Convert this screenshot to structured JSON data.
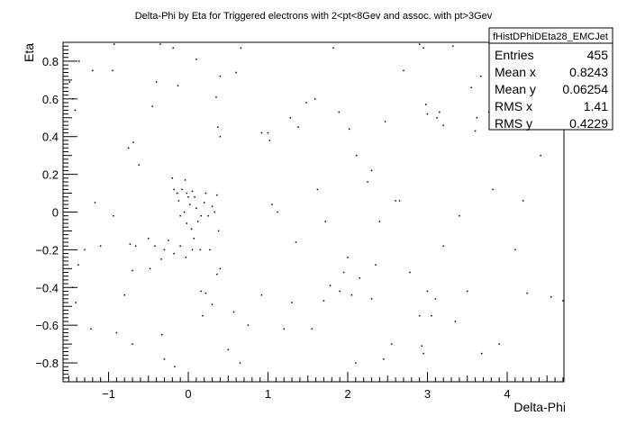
{
  "chart_data": {
    "type": "scatter",
    "title": "Delta-Phi by Eta for Triggered electrons with 2<pt<8Gev and assoc. with pt>3Gev",
    "xlabel": "Delta-Phi",
    "ylabel": "Eta",
    "xlim": [
      -1.571,
      4.712
    ],
    "ylim": [
      -0.9,
      0.9
    ],
    "x_ticks": [
      -1,
      0,
      1,
      2,
      3,
      4
    ],
    "x_tick_labels": [
      "−1",
      "0",
      "1",
      "2",
      "3",
      "4"
    ],
    "y_ticks": [
      -0.8,
      -0.6,
      -0.4,
      -0.2,
      0,
      0.2,
      0.4,
      0.6,
      0.8
    ],
    "y_tick_labels": [
      "−0.8",
      "−0.6",
      "−0.4",
      "−0.2",
      "0",
      "0.2",
      "0.4",
      "0.6",
      "0.8"
    ],
    "grid": false,
    "marker_color": "#000000",
    "points": [
      [
        -1.49,
        0.69
      ],
      [
        -1.45,
        0.6
      ],
      [
        -1.42,
        0.54
      ],
      [
        -1.37,
        0.8
      ],
      [
        -1.2,
        0.75
      ],
      [
        -0.93,
        0.89
      ],
      [
        -0.95,
        0.75
      ],
      [
        -0.75,
        0.34
      ],
      [
        -0.69,
        0.37
      ],
      [
        -0.62,
        0.25
      ],
      [
        -0.45,
        0.56
      ],
      [
        -0.4,
        0.69
      ],
      [
        -0.35,
        0.89
      ],
      [
        -0.19,
        0.87
      ],
      [
        -0.13,
        0.67
      ],
      [
        0.1,
        0.81
      ],
      [
        0.35,
        0.61
      ],
      [
        0.4,
        0.72
      ],
      [
        0.6,
        0.74
      ],
      [
        0.66,
        0.87
      ],
      [
        0.37,
        0.45
      ],
      [
        0.4,
        0.4
      ],
      [
        0.92,
        0.42
      ],
      [
        1.0,
        0.42
      ],
      [
        1.02,
        0.38
      ],
      [
        1.28,
        0.5
      ],
      [
        1.38,
        0.45
      ],
      [
        1.48,
        0.58
      ],
      [
        1.59,
        0.6
      ],
      [
        1.82,
        0.87
      ],
      [
        1.89,
        0.53
      ],
      [
        2.02,
        0.44
      ],
      [
        2.11,
        0.3
      ],
      [
        2.25,
        0.16
      ],
      [
        2.3,
        0.22
      ],
      [
        2.47,
        0.48
      ],
      [
        2.6,
        0.06
      ],
      [
        2.65,
        0.06
      ],
      [
        2.7,
        0.75
      ],
      [
        2.98,
        0.57
      ],
      [
        3.0,
        0.52
      ],
      [
        3.12,
        0.5
      ],
      [
        3.15,
        0.53
      ],
      [
        3.2,
        0.46
      ],
      [
        2.95,
        0.87
      ],
      [
        2.9,
        0.89
      ],
      [
        3.32,
        0.88
      ],
      [
        3.55,
        0.66
      ],
      [
        3.67,
        0.72
      ],
      [
        3.6,
        0.43
      ],
      [
        3.62,
        0.5
      ],
      [
        3.77,
        0.53
      ],
      [
        3.95,
        0.55
      ],
      [
        -0.2,
        0.18
      ],
      [
        -0.18,
        0.12
      ],
      [
        -0.14,
        0.1
      ],
      [
        -0.12,
        0.06
      ],
      [
        -0.08,
        0.12
      ],
      [
        -0.04,
        0.17
      ],
      [
        -0.02,
        0.1
      ],
      [
        0.0,
        0.08
      ],
      [
        0.02,
        0.04
      ],
      [
        0.05,
        0.11
      ],
      [
        0.08,
        0.08
      ],
      [
        0.1,
        0.02
      ],
      [
        -0.05,
        0.0
      ],
      [
        -0.1,
        -0.02
      ],
      [
        -0.02,
        -0.06
      ],
      [
        0.04,
        -0.09
      ],
      [
        0.07,
        -0.14
      ],
      [
        0.12,
        -0.05
      ],
      [
        0.16,
        -0.02
      ],
      [
        0.2,
        0.05
      ],
      [
        0.22,
        0.1
      ],
      [
        0.25,
        -0.02
      ],
      [
        0.3,
        0.03
      ],
      [
        0.33,
        0.0
      ],
      [
        0.36,
        0.09
      ],
      [
        0.38,
        -0.1
      ],
      [
        0.27,
        -0.2
      ],
      [
        0.15,
        -0.2
      ],
      [
        0.05,
        -0.2
      ],
      [
        -0.03,
        -0.24
      ],
      [
        -0.1,
        -0.18
      ],
      [
        -0.18,
        -0.22
      ],
      [
        -0.25,
        -0.15
      ],
      [
        -0.3,
        -0.2
      ],
      [
        -0.34,
        -0.25
      ],
      [
        -0.42,
        -0.18
      ],
      [
        -0.48,
        -0.3
      ],
      [
        -0.5,
        -0.14
      ],
      [
        -0.66,
        -0.18
      ],
      [
        -0.73,
        -0.17
      ],
      [
        -0.7,
        -0.31
      ],
      [
        -0.8,
        -0.44
      ],
      [
        -0.94,
        -0.02
      ],
      [
        -1.1,
        -0.18
      ],
      [
        -1.17,
        0.05
      ],
      [
        -1.3,
        -0.2
      ],
      [
        -1.38,
        -0.28
      ],
      [
        -1.45,
        -0.4
      ],
      [
        -1.41,
        -0.48
      ],
      [
        -1.22,
        -0.62
      ],
      [
        -0.9,
        -0.64
      ],
      [
        -0.7,
        -0.7
      ],
      [
        -0.33,
        -0.65
      ],
      [
        -0.3,
        -0.78
      ],
      [
        -0.17,
        -0.82
      ],
      [
        0.18,
        -0.55
      ],
      [
        0.3,
        -0.49
      ],
      [
        0.36,
        -0.33
      ],
      [
        0.4,
        -0.3
      ],
      [
        0.16,
        -0.42
      ],
      [
        0.22,
        -0.43
      ],
      [
        0.5,
        -0.73
      ],
      [
        0.57,
        -0.53
      ],
      [
        0.65,
        -0.8
      ],
      [
        0.75,
        -0.6
      ],
      [
        0.92,
        -0.44
      ],
      [
        1.2,
        -0.62
      ],
      [
        1.3,
        -0.48
      ],
      [
        1.55,
        -0.62
      ],
      [
        1.7,
        -0.47
      ],
      [
        1.78,
        -0.39
      ],
      [
        1.9,
        -0.42
      ],
      [
        1.95,
        -0.32
      ],
      [
        2.05,
        -0.44
      ],
      [
        2.1,
        -0.8
      ],
      [
        2.3,
        -0.46
      ],
      [
        2.35,
        -0.28
      ],
      [
        2.45,
        -0.78
      ],
      [
        2.55,
        -0.7
      ],
      [
        2.9,
        -0.55
      ],
      [
        2.93,
        -0.71
      ],
      [
        2.95,
        -0.75
      ],
      [
        3.0,
        -0.42
      ],
      [
        3.05,
        -0.55
      ],
      [
        3.1,
        -0.46
      ],
      [
        3.35,
        -0.58
      ],
      [
        3.5,
        -0.42
      ],
      [
        3.68,
        -0.75
      ],
      [
        3.9,
        -0.7
      ],
      [
        4.1,
        -0.2
      ],
      [
        4.25,
        -0.43
      ],
      [
        4.55,
        -0.45
      ],
      [
        4.7,
        -0.47
      ],
      [
        1.05,
        0.04
      ],
      [
        1.12,
        0.0
      ],
      [
        1.35,
        -0.16
      ],
      [
        1.62,
        0.12
      ],
      [
        1.72,
        -0.05
      ],
      [
        2.0,
        -0.24
      ],
      [
        2.15,
        -0.35
      ],
      [
        2.4,
        -0.05
      ],
      [
        2.78,
        -0.32
      ],
      [
        3.2,
        -0.18
      ],
      [
        3.4,
        -0.02
      ],
      [
        3.82,
        0.12
      ],
      [
        4.2,
        0.06
      ],
      [
        4.42,
        0.3
      ]
    ],
    "stats_box": {
      "name": "fHistDPhiDEta28_EMCJet",
      "rows": [
        {
          "label": "Entries",
          "value": "455"
        },
        {
          "label": "Mean x",
          "value": "0.8243"
        },
        {
          "label": "Mean y",
          "value": "0.06254"
        },
        {
          "label": "RMS x",
          "value": "1.41"
        },
        {
          "label": "RMS y",
          "value": "0.4229"
        }
      ]
    }
  }
}
